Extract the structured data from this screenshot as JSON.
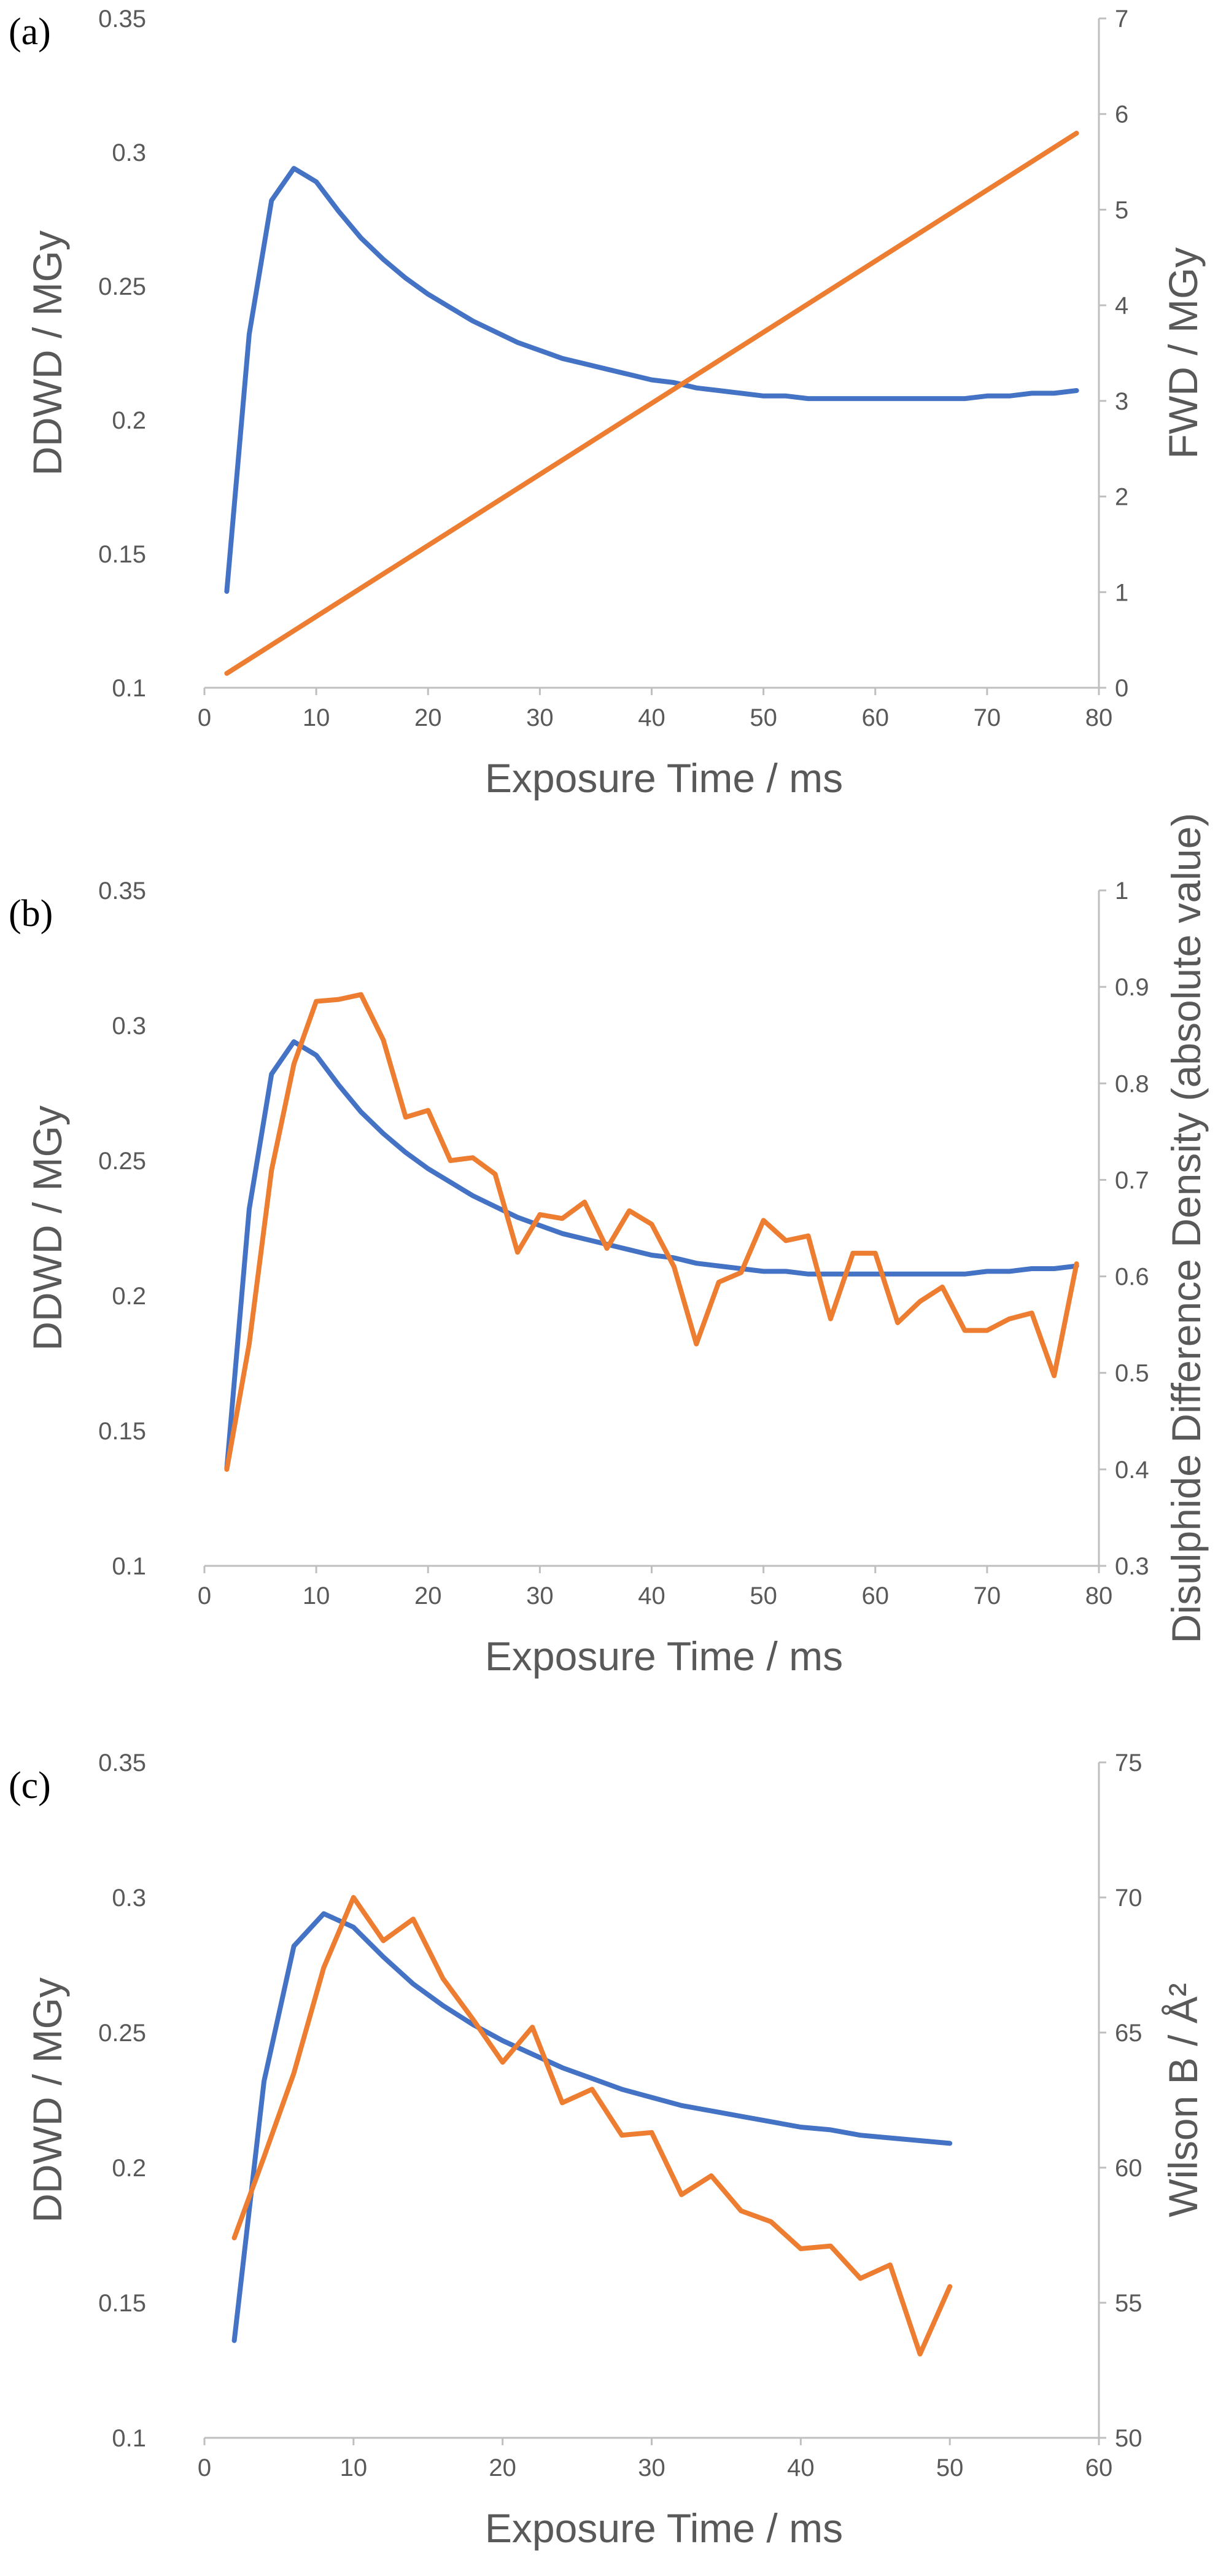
{
  "colors": {
    "blue": "#4472c4",
    "orange": "#ed7d31",
    "tick": "#595959",
    "axis": "#bfbfbf"
  },
  "chart_data": [
    {
      "panel": "(a)",
      "type": "line",
      "xlabel": "Exposure Time / ms",
      "ylabel_left": "DDWD / MGy",
      "ylabel_right": "FWD / MGy",
      "xlim": [
        0,
        80
      ],
      "xticks": [
        0,
        10,
        20,
        30,
        40,
        50,
        60,
        70,
        80
      ],
      "ylim_left": [
        0.1,
        0.35
      ],
      "yticks_left": [
        0.1,
        0.15,
        0.2,
        0.25,
        0.3,
        0.35
      ],
      "ylim_right": [
        0,
        7
      ],
      "yticks_right": [
        0,
        1,
        2,
        3,
        4,
        5,
        6,
        7
      ],
      "series": [
        {
          "axis": "left",
          "color": "#4472c4",
          "x": [
            2,
            4,
            6,
            8,
            10,
            12,
            14,
            16,
            18,
            20,
            22,
            24,
            26,
            28,
            30,
            32,
            34,
            36,
            38,
            40,
            42,
            44,
            46,
            48,
            50,
            52,
            54,
            56,
            58,
            60,
            62,
            64,
            66,
            68,
            70,
            72,
            74,
            76,
            78
          ],
          "y": [
            0.136,
            0.232,
            0.282,
            0.294,
            0.289,
            0.278,
            0.268,
            0.26,
            0.253,
            0.247,
            0.242,
            0.237,
            0.233,
            0.229,
            0.226,
            0.223,
            0.221,
            0.219,
            0.217,
            0.215,
            0.214,
            0.212,
            0.211,
            0.21,
            0.209,
            0.209,
            0.208,
            0.208,
            0.208,
            0.208,
            0.208,
            0.208,
            0.208,
            0.208,
            0.209,
            0.209,
            0.21,
            0.21,
            0.211
          ]
        },
        {
          "axis": "right",
          "color": "#ed7d31",
          "x": [
            2,
            78
          ],
          "y": [
            0.15,
            5.8
          ]
        }
      ]
    },
    {
      "panel": "(b)",
      "type": "line",
      "xlabel": "Exposure Time / ms",
      "ylabel_left": "DDWD / MGy",
      "ylabel_right": "Disulphide Difference Density (absolute value)",
      "xlim": [
        0,
        80
      ],
      "xticks": [
        0,
        10,
        20,
        30,
        40,
        50,
        60,
        70,
        80
      ],
      "ylim_left": [
        0.1,
        0.35
      ],
      "yticks_left": [
        0.1,
        0.15,
        0.2,
        0.25,
        0.3,
        0.35
      ],
      "ylim_right": [
        0.3,
        1
      ],
      "yticks_right": [
        0.3,
        0.4,
        0.5,
        0.6,
        0.7,
        0.8,
        0.9,
        1
      ],
      "series": [
        {
          "axis": "left",
          "color": "#4472c4",
          "x": [
            2,
            4,
            6,
            8,
            10,
            12,
            14,
            16,
            18,
            20,
            22,
            24,
            26,
            28,
            30,
            32,
            34,
            36,
            38,
            40,
            42,
            44,
            46,
            48,
            50,
            52,
            54,
            56,
            58,
            60,
            62,
            64,
            66,
            68,
            70,
            72,
            74,
            76,
            78
          ],
          "y": [
            0.136,
            0.232,
            0.282,
            0.294,
            0.289,
            0.278,
            0.268,
            0.26,
            0.253,
            0.247,
            0.242,
            0.237,
            0.233,
            0.229,
            0.226,
            0.223,
            0.221,
            0.219,
            0.217,
            0.215,
            0.214,
            0.212,
            0.211,
            0.21,
            0.209,
            0.209,
            0.208,
            0.208,
            0.208,
            0.208,
            0.208,
            0.208,
            0.208,
            0.208,
            0.209,
            0.209,
            0.21,
            0.21,
            0.211
          ]
        },
        {
          "axis": "right",
          "color": "#ed7d31",
          "x": [
            2,
            4,
            6,
            8,
            10,
            12,
            14,
            16,
            18,
            20,
            22,
            24,
            26,
            28,
            30,
            32,
            34,
            36,
            38,
            40,
            42,
            44,
            46,
            48,
            50,
            52,
            54,
            56,
            58,
            60,
            62,
            64,
            66,
            68,
            70,
            72,
            74,
            76,
            78
          ],
          "y": [
            0.4,
            0.53,
            0.71,
            0.82,
            0.885,
            0.887,
            0.892,
            0.845,
            0.765,
            0.772,
            0.72,
            0.723,
            0.706,
            0.625,
            0.664,
            0.66,
            0.677,
            0.629,
            0.668,
            0.654,
            0.61,
            0.53,
            0.594,
            0.604,
            0.658,
            0.637,
            0.642,
            0.556,
            0.624,
            0.624,
            0.552,
            0.574,
            0.589,
            0.544,
            0.544,
            0.556,
            0.562,
            0.497,
            0.613
          ]
        }
      ]
    },
    {
      "panel": "(c)",
      "type": "line",
      "xlabel": "Exposure Time / ms",
      "ylabel_left": "DDWD / MGy",
      "ylabel_right": "Wilson B / Å²",
      "xlim": [
        0,
        60
      ],
      "xticks": [
        0,
        10,
        20,
        30,
        40,
        50,
        60
      ],
      "ylim_left": [
        0.1,
        0.35
      ],
      "yticks_left": [
        0.1,
        0.15,
        0.2,
        0.25,
        0.3,
        0.35
      ],
      "ylim_right": [
        50,
        75
      ],
      "yticks_right": [
        50,
        55,
        60,
        65,
        70,
        75
      ],
      "series": [
        {
          "axis": "left",
          "color": "#4472c4",
          "x": [
            2,
            4,
            6,
            8,
            10,
            12,
            14,
            16,
            18,
            20,
            22,
            24,
            26,
            28,
            30,
            32,
            34,
            36,
            38,
            40,
            42,
            44,
            46,
            48,
            50
          ],
          "y": [
            0.136,
            0.232,
            0.282,
            0.294,
            0.289,
            0.278,
            0.268,
            0.26,
            0.253,
            0.247,
            0.242,
            0.237,
            0.233,
            0.229,
            0.226,
            0.223,
            0.221,
            0.219,
            0.217,
            0.215,
            0.214,
            0.212,
            0.211,
            0.21,
            0.209
          ]
        },
        {
          "axis": "right",
          "color": "#ed7d31",
          "x": [
            2,
            4,
            6,
            8,
            10,
            12,
            14,
            16,
            18,
            20,
            22,
            24,
            26,
            28,
            30,
            32,
            34,
            36,
            38,
            40,
            42,
            44,
            46,
            48,
            50
          ],
          "y": [
            57.4,
            60.4,
            63.5,
            67.4,
            70.0,
            68.4,
            69.2,
            67.0,
            65.5,
            63.9,
            65.2,
            62.4,
            62.9,
            61.2,
            61.3,
            59.0,
            59.7,
            58.4,
            58.0,
            57.0,
            57.1,
            55.9,
            56.4,
            53.1,
            55.6
          ]
        }
      ]
    }
  ]
}
